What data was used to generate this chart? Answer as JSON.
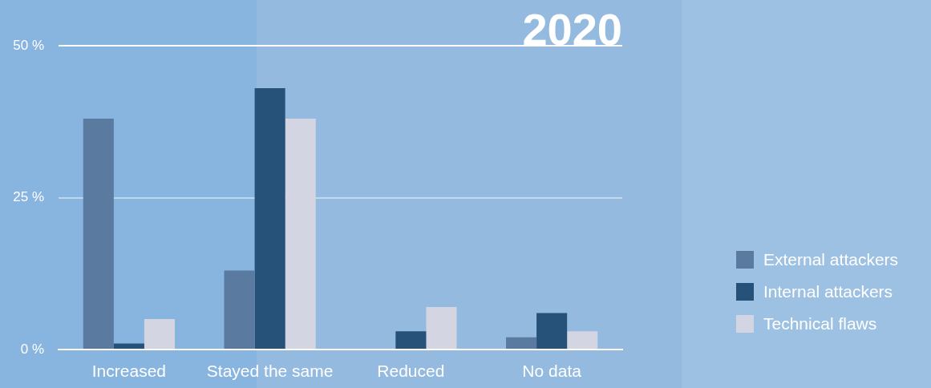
{
  "chart_data": {
    "type": "bar",
    "title": "2020",
    "categories": [
      "Increased",
      "Stayed the same",
      "Reduced",
      "No data"
    ],
    "series": [
      {
        "name": "External attackers",
        "color": "#5a7a9f",
        "values": [
          38,
          13,
          0,
          2
        ]
      },
      {
        "name": "Internal attackers",
        "color": "#26527a",
        "values": [
          1,
          43,
          3,
          6
        ]
      },
      {
        "name": "Technical flaws",
        "color": "#d3d5e3",
        "values": [
          5,
          38,
          7,
          3
        ]
      }
    ],
    "ylim": [
      0,
      50
    ],
    "yticks": [
      {
        "value": 0,
        "label": "0 %"
      },
      {
        "value": 25,
        "label": "25 %"
      },
      {
        "value": 50,
        "label": "50 %"
      }
    ],
    "grid": "y",
    "legend": "right"
  }
}
